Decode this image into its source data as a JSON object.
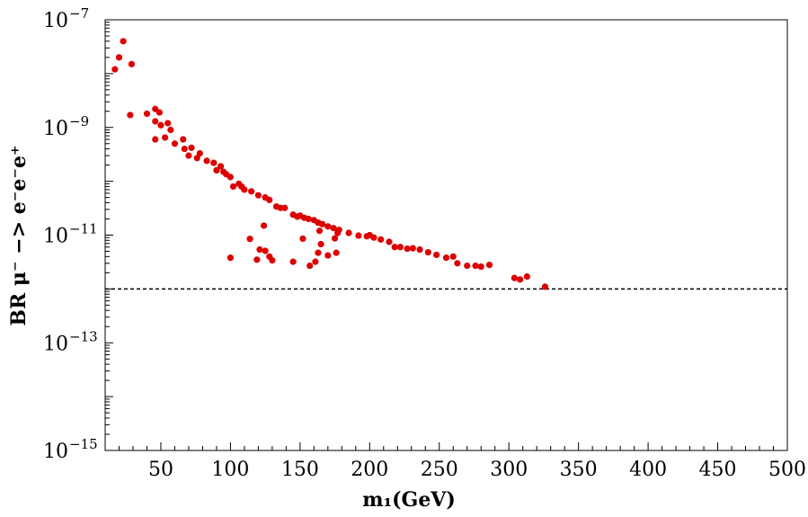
{
  "chart_data": {
    "type": "scatter",
    "title": "",
    "xlabel": "m₁(GeV)",
    "ylabel": "BR μ⁻ −> e⁻e⁻e⁺",
    "x_scale": "linear",
    "y_scale": "log",
    "xlim": [
      10,
      500
    ],
    "ylim_log10": [
      -15,
      -7
    ],
    "x_ticks": [
      50,
      100,
      150,
      200,
      250,
      300,
      350,
      400,
      450,
      500
    ],
    "x_tick_labels": [
      "50",
      "100",
      "150",
      "200",
      "250",
      "300",
      "350",
      "400",
      "450",
      "500"
    ],
    "y_ticks": [
      {
        "base": "10",
        "exp": "−7",
        "log10": -7
      },
      {
        "base": "10",
        "exp": "−9",
        "log10": -9
      },
      {
        "base": "10",
        "exp": "−11",
        "log10": -11
      },
      {
        "base": "10",
        "exp": "−13",
        "log10": -13
      },
      {
        "base": "10",
        "exp": "−15",
        "log10": -15
      }
    ],
    "reference_line": {
      "value": 1e-12,
      "style": "dashed",
      "color": "#000000"
    },
    "marker_color": "#dd0000",
    "points": [
      {
        "x": 17,
        "y": 1.2e-08
      },
      {
        "x": 20,
        "y": 2e-08
      },
      {
        "x": 23,
        "y": 4e-08
      },
      {
        "x": 29,
        "y": 1.5e-08
      },
      {
        "x": 28,
        "y": 1.7e-09
      },
      {
        "x": 40,
        "y": 1.8e-09
      },
      {
        "x": 46,
        "y": 2.2e-09
      },
      {
        "x": 49,
        "y": 1.9e-09
      },
      {
        "x": 46,
        "y": 1.3e-09
      },
      {
        "x": 50,
        "y": 1.1e-09
      },
      {
        "x": 55,
        "y": 1.2e-09
      },
      {
        "x": 57,
        "y": 9e-10
      },
      {
        "x": 46,
        "y": 6e-10
      },
      {
        "x": 53,
        "y": 6.5e-10
      },
      {
        "x": 60,
        "y": 5e-10
      },
      {
        "x": 66,
        "y": 6e-10
      },
      {
        "x": 67,
        "y": 4e-10
      },
      {
        "x": 72,
        "y": 4.2e-10
      },
      {
        "x": 70,
        "y": 3e-10
      },
      {
        "x": 78,
        "y": 3.3e-10
      },
      {
        "x": 76,
        "y": 2.7e-10
      },
      {
        "x": 83,
        "y": 2.4e-10
      },
      {
        "x": 88,
        "y": 2.2e-10
      },
      {
        "x": 93,
        "y": 1.9e-10
      },
      {
        "x": 90,
        "y": 1.6e-10
      },
      {
        "x": 95,
        "y": 1.5e-10
      },
      {
        "x": 97,
        "y": 1.35e-10
      },
      {
        "x": 100,
        "y": 1.2e-10
      },
      {
        "x": 102,
        "y": 8e-11
      },
      {
        "x": 106,
        "y": 9e-11
      },
      {
        "x": 108,
        "y": 8e-11
      },
      {
        "x": 110,
        "y": 7e-11
      },
      {
        "x": 115,
        "y": 6.5e-11
      },
      {
        "x": 120,
        "y": 5.5e-11
      },
      {
        "x": 125,
        "y": 5e-11
      },
      {
        "x": 128,
        "y": 4.5e-11
      },
      {
        "x": 133,
        "y": 3.4e-11
      },
      {
        "x": 136,
        "y": 3.2e-11
      },
      {
        "x": 139,
        "y": 3.2e-11
      },
      {
        "x": 145,
        "y": 2.4e-11
      },
      {
        "x": 148,
        "y": 2.2e-11
      },
      {
        "x": 150,
        "y": 2.3e-11
      },
      {
        "x": 153,
        "y": 2.1e-11
      },
      {
        "x": 156,
        "y": 2e-11
      },
      {
        "x": 160,
        "y": 1.9e-11
      },
      {
        "x": 163,
        "y": 1.7e-11
      },
      {
        "x": 166,
        "y": 1.6e-11
      },
      {
        "x": 170,
        "y": 1.45e-11
      },
      {
        "x": 174,
        "y": 1.35e-11
      },
      {
        "x": 178,
        "y": 1.25e-11
      },
      {
        "x": 185,
        "y": 1.1e-11
      },
      {
        "x": 192,
        "y": 9.8e-12
      },
      {
        "x": 198,
        "y": 9.5e-12
      },
      {
        "x": 200,
        "y": 1e-11
      },
      {
        "x": 203,
        "y": 9e-12
      },
      {
        "x": 208,
        "y": 8.3e-12
      },
      {
        "x": 214,
        "y": 7.5e-12
      },
      {
        "x": 218,
        "y": 6e-12
      },
      {
        "x": 222,
        "y": 6e-12
      },
      {
        "x": 227,
        "y": 5.6e-12
      },
      {
        "x": 231,
        "y": 5.7e-12
      },
      {
        "x": 236,
        "y": 5.4e-12
      },
      {
        "x": 242,
        "y": 4.8e-12
      },
      {
        "x": 248,
        "y": 4.3e-12
      },
      {
        "x": 255,
        "y": 3.8e-12
      },
      {
        "x": 260,
        "y": 4e-12
      },
      {
        "x": 263,
        "y": 3e-12
      },
      {
        "x": 270,
        "y": 2.7e-12
      },
      {
        "x": 276,
        "y": 2.7e-12
      },
      {
        "x": 280,
        "y": 2.6e-12
      },
      {
        "x": 286,
        "y": 2.8e-12
      },
      {
        "x": 304,
        "y": 1.6e-12
      },
      {
        "x": 308,
        "y": 1.5e-12
      },
      {
        "x": 313,
        "y": 1.7e-12
      },
      {
        "x": 326,
        "y": 1.1e-12
      },
      {
        "x": 100,
        "y": 3.8e-12
      },
      {
        "x": 114,
        "y": 8.5e-12
      },
      {
        "x": 119,
        "y": 3.5e-12
      },
      {
        "x": 121,
        "y": 5.4e-12
      },
      {
        "x": 124,
        "y": 1.5e-11
      },
      {
        "x": 125,
        "y": 5.1e-12
      },
      {
        "x": 128,
        "y": 4e-12
      },
      {
        "x": 130,
        "y": 3.4e-12
      },
      {
        "x": 145,
        "y": 3.2e-12
      },
      {
        "x": 152,
        "y": 8.6e-12
      },
      {
        "x": 157,
        "y": 2.7e-12
      },
      {
        "x": 161,
        "y": 3.2e-12
      },
      {
        "x": 163,
        "y": 4.7e-12
      },
      {
        "x": 164,
        "y": 1.2e-11
      },
      {
        "x": 165,
        "y": 6.8e-12
      },
      {
        "x": 170,
        "y": 4.2e-12
      },
      {
        "x": 175,
        "y": 8.7e-12
      },
      {
        "x": 177,
        "y": 1.1e-11
      },
      {
        "x": 176,
        "y": 4.7e-12
      }
    ]
  }
}
